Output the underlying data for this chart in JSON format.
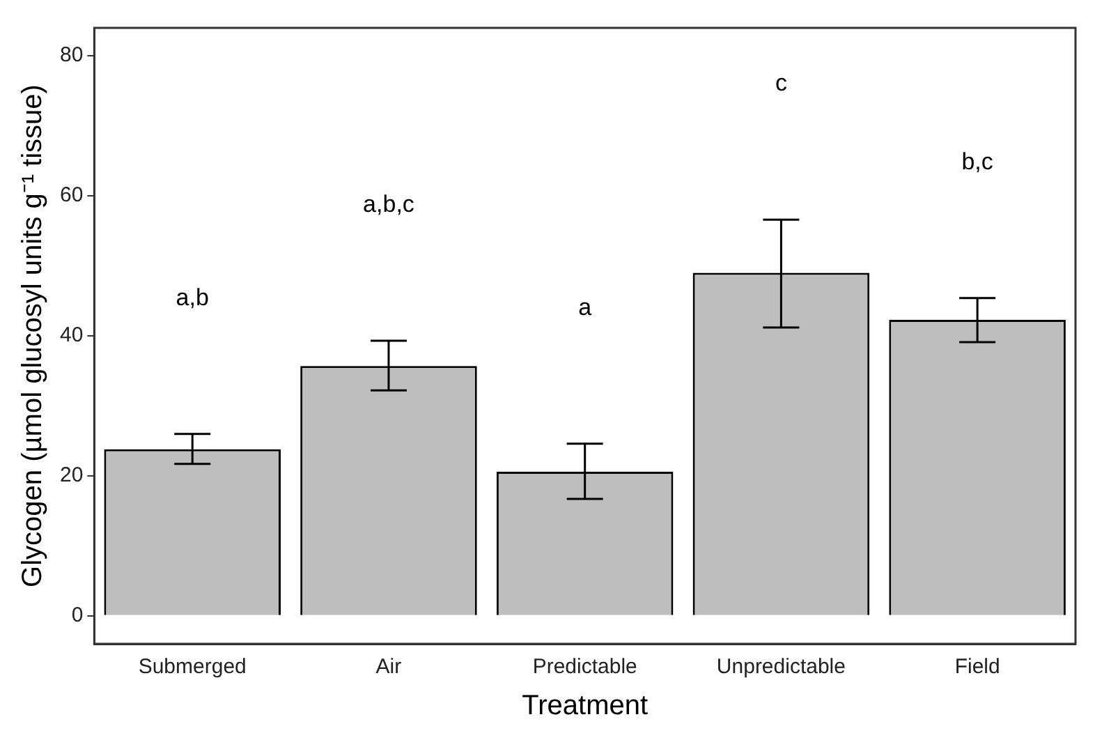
{
  "chart_data": {
    "type": "bar",
    "xlabel": "Treatment",
    "ylabel": "Glycogen (µmol glucosyl units g⁻¹ tissue)",
    "categories": [
      "Submerged",
      "Air",
      "Predictable",
      "Unpredictable",
      "Field"
    ],
    "values": [
      23.8,
      35.7,
      20.6,
      49.0,
      42.3
    ],
    "color": "#bebebe",
    "errors": [
      [
        21.7,
        26.0
      ],
      [
        32.2,
        39.3
      ],
      [
        16.7,
        24.6
      ],
      [
        41.2,
        56.6
      ],
      [
        39.1,
        45.4
      ]
    ],
    "ylim": [
      -4,
      84
    ],
    "yticks": [
      0,
      20,
      40,
      60,
      80
    ],
    "grid": false,
    "legend": false,
    "annotations": [
      "a,b",
      "a,b,c",
      "a",
      "c",
      "b,c"
    ]
  }
}
